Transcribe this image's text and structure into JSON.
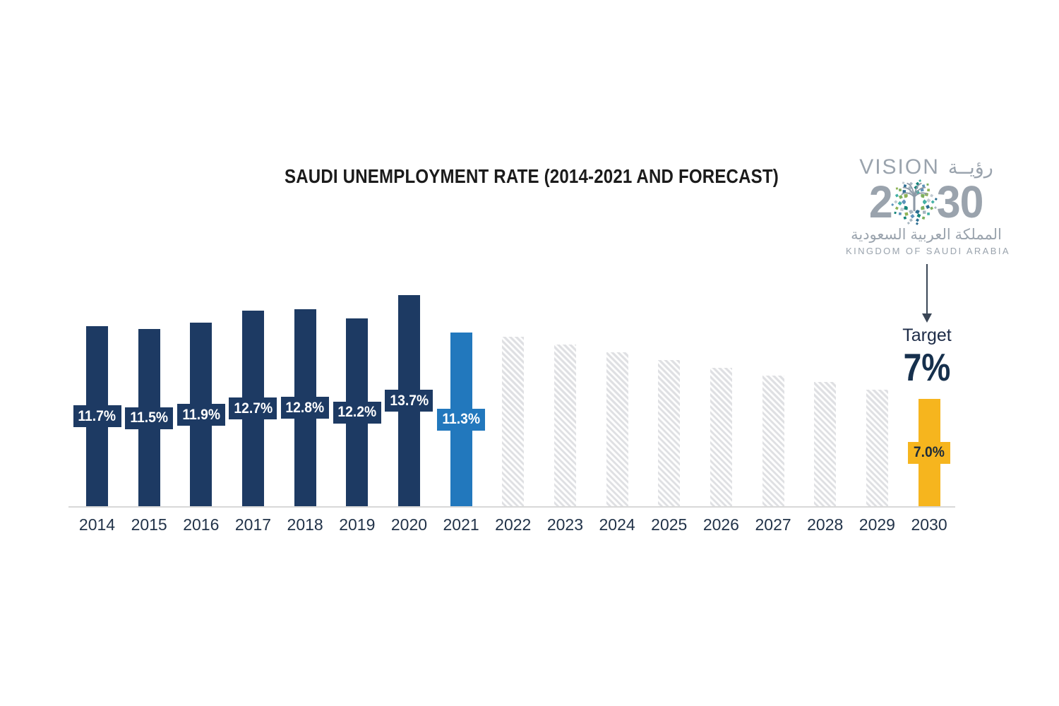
{
  "title": "SAUDI UNEMPLOYMENT RATE (2014-2021 AND FORECAST)",
  "logo": {
    "vision_en": "VISION",
    "vision_ar": "رؤيــة",
    "year_left": "2",
    "year_right": "30",
    "country_ar": "المملكة العربية السعودية",
    "country_en": "KINGDOM OF SAUDI ARABIA"
  },
  "target": {
    "label": "Target",
    "value": "7%"
  },
  "chart_data": {
    "type": "bar",
    "title": "SAUDI UNEMPLOYMENT RATE (2014-2021 AND FORECAST)",
    "xlabel": "",
    "ylabel": "",
    "ylim": [
      0,
      15
    ],
    "grid": false,
    "categories": [
      "2014",
      "2015",
      "2016",
      "2017",
      "2018",
      "2019",
      "2020",
      "2021",
      "2022",
      "2023",
      "2024",
      "2025",
      "2026",
      "2027",
      "2028",
      "2029",
      "2030"
    ],
    "bars": [
      {
        "year": "2014",
        "value": 11.7,
        "label": "11.7%",
        "kind": "actual"
      },
      {
        "year": "2015",
        "value": 11.5,
        "label": "11.5%",
        "kind": "actual"
      },
      {
        "year": "2016",
        "value": 11.9,
        "label": "11.9%",
        "kind": "actual"
      },
      {
        "year": "2017",
        "value": 12.7,
        "label": "12.7%",
        "kind": "actual"
      },
      {
        "year": "2018",
        "value": 12.8,
        "label": "12.8%",
        "kind": "actual"
      },
      {
        "year": "2019",
        "value": 12.2,
        "label": "12.2%",
        "kind": "actual"
      },
      {
        "year": "2020",
        "value": 13.7,
        "label": "13.7%",
        "kind": "actual"
      },
      {
        "year": "2021",
        "value": 11.3,
        "label": "11.3%",
        "kind": "highlight"
      },
      {
        "year": "2022",
        "value": 11.0,
        "label": "",
        "kind": "forecast",
        "estimated": true
      },
      {
        "year": "2023",
        "value": 10.5,
        "label": "",
        "kind": "forecast",
        "estimated": true
      },
      {
        "year": "2024",
        "value": 10.0,
        "label": "",
        "kind": "forecast",
        "estimated": true
      },
      {
        "year": "2025",
        "value": 9.5,
        "label": "",
        "kind": "forecast",
        "estimated": true
      },
      {
        "year": "2026",
        "value": 9.0,
        "label": "",
        "kind": "forecast",
        "estimated": true
      },
      {
        "year": "2027",
        "value": 8.5,
        "label": "",
        "kind": "forecast",
        "estimated": true
      },
      {
        "year": "2028",
        "value": 8.1,
        "label": "",
        "kind": "forecast",
        "estimated": true
      },
      {
        "year": "2029",
        "value": 7.6,
        "label": "",
        "kind": "forecast",
        "estimated": true
      },
      {
        "year": "2030",
        "value": 7.0,
        "label": "7.0%",
        "kind": "target"
      }
    ],
    "colors": {
      "actual": "#1d3a63",
      "highlight": "#2278bd",
      "forecast_stripe": "#dfe0e3",
      "target": "#f6b51e",
      "axis": "#d8d8d8",
      "year_label": "#223349",
      "title": "#1b1b1b",
      "logo_gray": "#9aa3ad",
      "target_text": "#16304d"
    },
    "notes": "Bars 2022-2029 are unlabeled hatched forecast bars; their values are estimated from bar heights. 2030 is the Vision 2030 target bar."
  }
}
